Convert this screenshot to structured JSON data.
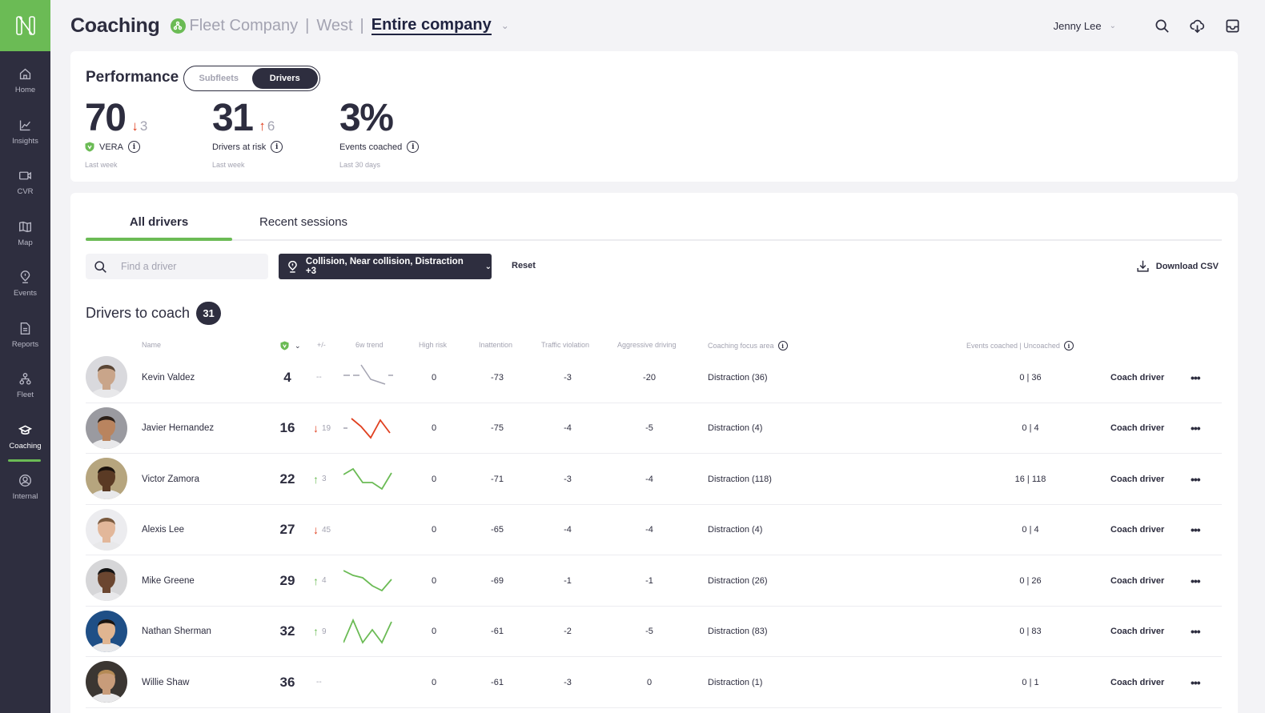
{
  "sidebar": {
    "logo": "N",
    "items": [
      {
        "label": "Home",
        "icon": "home-icon"
      },
      {
        "label": "Insights",
        "icon": "chart-line-icon"
      },
      {
        "label": "CVR",
        "icon": "video-camera-icon"
      },
      {
        "label": "Map",
        "icon": "map-icon"
      },
      {
        "label": "Events",
        "icon": "location-pin-alert-icon"
      },
      {
        "label": "Reports",
        "icon": "document-icon"
      },
      {
        "label": "Fleet",
        "icon": "org-hierarchy-icon"
      },
      {
        "label": "Coaching",
        "icon": "graduation-cap-icon",
        "active": true
      },
      {
        "label": "Internal",
        "icon": "user-circle-icon"
      }
    ]
  },
  "header": {
    "title": "Coaching",
    "breadcrumb": [
      "Fleet Company",
      "West",
      "Entire company"
    ],
    "user": "Jenny Lee",
    "icons": [
      "search-icon",
      "cloud-download-icon",
      "inbox-icon"
    ]
  },
  "performance": {
    "title": "Performance",
    "toggle": {
      "options": [
        "Subfleets",
        "Drivers"
      ],
      "selected": "Drivers"
    },
    "kpis": [
      {
        "value": "70",
        "direction": "down",
        "arrow": "↓",
        "delta": "3",
        "label": "VERA",
        "sub": "Last week"
      },
      {
        "value": "31",
        "direction": "up",
        "arrow": "↑",
        "delta": "6",
        "label": "Drivers at risk",
        "sub": "Last week"
      },
      {
        "value": "3%",
        "label": "Events coached",
        "sub": "Last 30 days"
      }
    ]
  },
  "tabs": [
    "All drivers",
    "Recent sessions"
  ],
  "filters": {
    "search_placeholder": "Find a driver",
    "event_filter": "Collision, Near collision, Distraction +3",
    "reset": "Reset",
    "download": "Download CSV"
  },
  "section": {
    "title": "Drivers to coach",
    "count": "31"
  },
  "table": {
    "columns": {
      "name": "Name",
      "score": "VERA",
      "delta": "+/-",
      "trend": "6w trend",
      "high_risk": "High risk",
      "inattention": "Inattention",
      "traffic": "Traffic violation",
      "aggressive": "Aggressive driving",
      "focus": "Coaching focus area",
      "events": "Events coached | Uncoached"
    },
    "action_label": "Coach driver",
    "more_label": "•••",
    "rows": [
      {
        "name": "Kevin Valdez",
        "score": "4",
        "arrow": "",
        "delta": "--",
        "trend_color": "#a3a3b1",
        "high_risk": "0",
        "inattention": "-73",
        "traffic": "-3",
        "aggressive": "-20",
        "focus": "Distraction (36)",
        "events": "0  |  36",
        "skin": "#c9a58a",
        "bg": "#d9d9dd",
        "hair": "#5a4636"
      },
      {
        "name": "Javier Hernandez",
        "score": "16",
        "arrow": "↓",
        "direction": "down",
        "delta": "19",
        "trend_color": "#e0401f",
        "high_risk": "0",
        "inattention": "-75",
        "traffic": "-4",
        "aggressive": "-5",
        "focus": "Distraction (4)",
        "events": "0  |  4",
        "skin": "#b9845f",
        "bg": "#9a9aa0",
        "hair": "#2a1f18"
      },
      {
        "name": "Victor Zamora",
        "score": "22",
        "arrow": "↑",
        "direction": "up",
        "delta": "3",
        "trend_color": "#6bbb55",
        "high_risk": "0",
        "inattention": "-71",
        "traffic": "-3",
        "aggressive": "-4",
        "focus": "Distraction (118)",
        "events": "16  |  118",
        "skin": "#5a3a24",
        "bg": "#b6a57e",
        "hair": "#1b130e"
      },
      {
        "name": "Alexis Lee",
        "score": "27",
        "arrow": "↓",
        "direction": "down",
        "delta": "45",
        "trend_color": "",
        "high_risk": "0",
        "inattention": "-65",
        "traffic": "-4",
        "aggressive": "-4",
        "focus": "Distraction (4)",
        "events": "0  |  4",
        "skin": "#e2b79a",
        "bg": "#ececef",
        "hair": "#7a5a3f"
      },
      {
        "name": "Mike Greene",
        "score": "29",
        "arrow": "↑",
        "direction": "up",
        "delta": "4",
        "trend_color": "#6bbb55",
        "high_risk": "0",
        "inattention": "-69",
        "traffic": "-1",
        "aggressive": "-1",
        "focus": "Distraction (26)",
        "events": "0  |  26",
        "skin": "#6b4630",
        "bg": "#d6d6d8",
        "hair": "#141414"
      },
      {
        "name": "Nathan Sherman",
        "score": "32",
        "arrow": "↑",
        "direction": "up",
        "delta": "9",
        "trend_color": "#6bbb55",
        "high_risk": "0",
        "inattention": "-61",
        "traffic": "-2",
        "aggressive": "-5",
        "focus": "Distraction (83)",
        "events": "0  |  83",
        "skin": "#e0b591",
        "bg": "#1f4f86",
        "hair": "#1a1410"
      },
      {
        "name": "Willie Shaw",
        "score": "36",
        "arrow": "",
        "delta": "--",
        "trend_color": "",
        "high_risk": "0",
        "inattention": "-61",
        "traffic": "-3",
        "aggressive": "0",
        "focus": "Distraction (1)",
        "events": "0  |  1",
        "skin": "#c89c7a",
        "bg": "#3b3632",
        "hair": "#b48a55"
      }
    ]
  },
  "colors": {
    "brand_green": "#6bbb55",
    "sidebar_bg": "#2e2e3f",
    "negative_red": "#e0401f",
    "muted": "#a3a3b1"
  }
}
